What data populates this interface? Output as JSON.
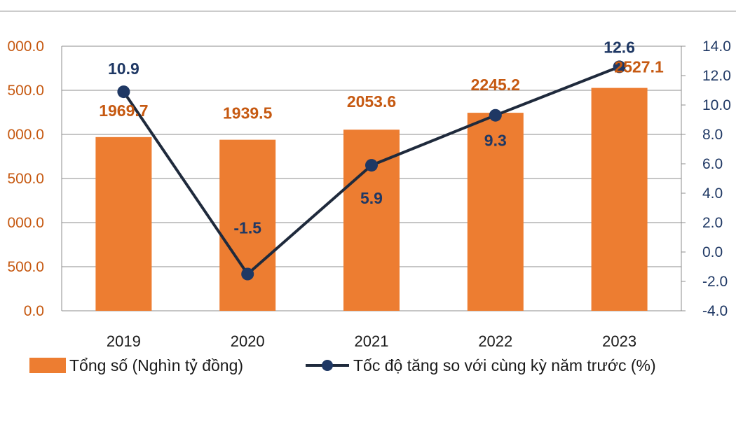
{
  "chart_data": {
    "type": "bar+line",
    "categories": [
      "2019",
      "2020",
      "2021",
      "2022",
      "2023"
    ],
    "series": [
      {
        "name": "Tổng số (Nghìn tỷ đồng)",
        "type": "bar",
        "axis": "left",
        "values": [
          1969.7,
          1939.5,
          2053.6,
          2245.2,
          2527.1
        ],
        "labels": [
          "1969.7",
          "1939.5",
          "2053.6",
          "2245.2",
          "2527.1"
        ],
        "color": "#ed7d31"
      },
      {
        "name": "Tốc độ tăng so với cùng kỳ năm trước (%)",
        "type": "line",
        "axis": "right",
        "values": [
          10.9,
          -1.5,
          5.9,
          9.3,
          12.6
        ],
        "labels": [
          "10.9",
          "-1.5",
          "5.9",
          "9.3",
          "12.6"
        ],
        "color": "#1f2a3c",
        "marker_color": "#1f3864"
      }
    ],
    "y_left": {
      "tick_labels": [
        "0.0",
        "500.0",
        "000.0",
        "500.0",
        "000.0",
        "500.0",
        "000.0"
      ],
      "color": "#c65911"
    },
    "y_right": {
      "ylim": [
        -4,
        14
      ],
      "tick_labels": [
        "-4.0",
        "-2.0",
        "0.0",
        "2.0",
        "4.0",
        "6.0",
        "8.0",
        "10.0",
        "12.0",
        "14.0"
      ],
      "color": "#1f3864"
    },
    "grid": true,
    "legend_position": "bottom"
  }
}
